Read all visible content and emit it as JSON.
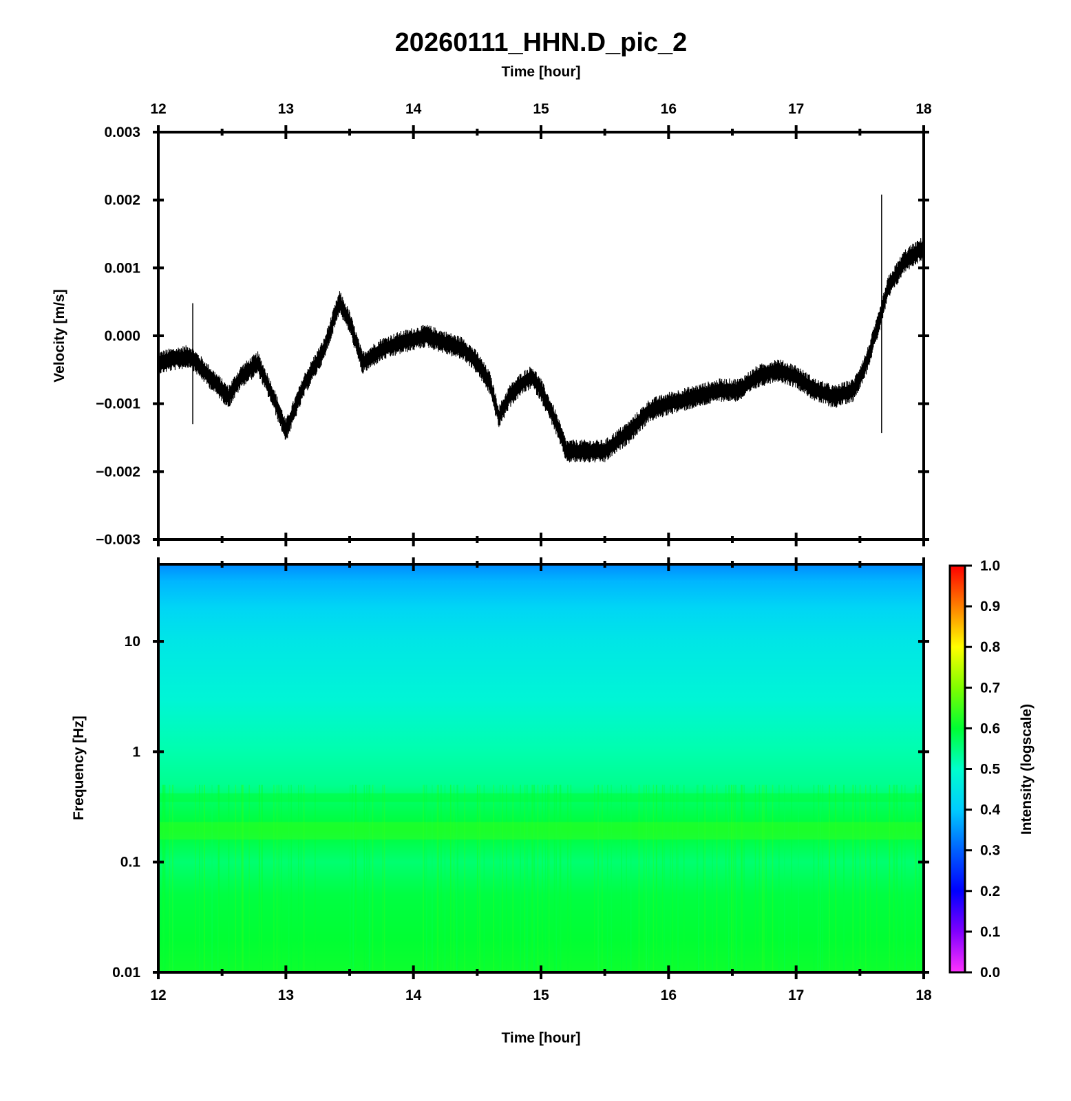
{
  "title": "20260111_HHN.D_pic_2",
  "chart_data": [
    {
      "type": "line",
      "name": "velocity-trace",
      "top_xlabel": "Time [hour]",
      "ylabel": "Velocity [m/s]",
      "xlim": [
        12,
        18
      ],
      "ylim": [
        -0.003,
        0.003
      ],
      "x_ticks": [
        "12",
        "13",
        "14",
        "15",
        "16",
        "17",
        "18"
      ],
      "y_ticks": [
        {
          "value": 0.003,
          "label": "0.003"
        },
        {
          "value": 0.002,
          "label": "0.002"
        },
        {
          "value": 0.001,
          "label": "0.001"
        },
        {
          "value": 0.0,
          "label": "0.000"
        },
        {
          "value": -0.001,
          "label": "−0.001"
        },
        {
          "value": -0.002,
          "label": "−0.002"
        },
        {
          "value": -0.003,
          "label": "−0.003"
        }
      ],
      "x": [
        12.0,
        12.1,
        12.25,
        12.4,
        12.55,
        12.65,
        12.78,
        12.9,
        13.0,
        13.15,
        13.3,
        13.42,
        13.5,
        13.6,
        13.75,
        13.9,
        14.1,
        14.25,
        14.4,
        14.5,
        14.6,
        14.67,
        14.75,
        14.85,
        14.93,
        15.0,
        15.1,
        15.2,
        15.35,
        15.5,
        15.7,
        15.85,
        16.0,
        16.2,
        16.4,
        16.55,
        16.7,
        16.85,
        17.0,
        17.15,
        17.3,
        17.45,
        17.55,
        17.65,
        17.72,
        17.85,
        18.0
      ],
      "y": [
        -0.0004,
        -0.00035,
        -0.0003,
        -0.0006,
        -0.0009,
        -0.0006,
        -0.0004,
        -0.0009,
        -0.0014,
        -0.0007,
        -0.0002,
        0.0005,
        0.0002,
        -0.0004,
        -0.0002,
        -0.0001,
        0.0,
        -0.0001,
        -0.0002,
        -0.0004,
        -0.0007,
        -0.0012,
        -0.0009,
        -0.0007,
        -0.0006,
        -0.0008,
        -0.0012,
        -0.0017,
        -0.0017,
        -0.0017,
        -0.0014,
        -0.0011,
        -0.001,
        -0.0009,
        -0.0008,
        -0.0008,
        -0.0006,
        -0.0005,
        -0.0006,
        -0.0008,
        -0.0009,
        -0.0008,
        -0.0004,
        0.0002,
        0.0007,
        0.0011,
        0.0013
      ],
      "noise_amplitude": 0.00015,
      "spikes": [
        {
          "x": 12.27,
          "ymin": -0.0013,
          "ymax": 0.00048
        },
        {
          "x": 17.67,
          "ymin": -0.00143,
          "ymax": 0.00208
        }
      ]
    },
    {
      "type": "heatmap",
      "name": "spectrogram",
      "xlabel": "Time [hour]",
      "ylabel": "Frequency [Hz]",
      "xlim": [
        12,
        18
      ],
      "ylim": [
        0.01,
        50
      ],
      "yscale": "log",
      "x_ticks": [
        "12",
        "13",
        "14",
        "15",
        "16",
        "17",
        "18"
      ],
      "y_ticks": [
        {
          "value": 10,
          "label": "10"
        },
        {
          "value": 1,
          "label": "1"
        },
        {
          "value": 0.1,
          "label": "0.1"
        },
        {
          "value": 0.01,
          "label": "0.01"
        }
      ],
      "intensity_profile": {
        "freq": [
          50,
          35,
          20,
          10,
          3,
          1,
          0.5,
          0.35,
          0.2,
          0.1,
          0.05,
          0.02,
          0.01
        ],
        "value": [
          0.34,
          0.38,
          0.42,
          0.45,
          0.48,
          0.52,
          0.54,
          0.57,
          0.6,
          0.56,
          0.59,
          0.6,
          0.61
        ]
      },
      "colorbar": {
        "label": "Intensity (logscale)",
        "range": [
          0.0,
          1.0
        ],
        "ticks": [
          "0.0",
          "0.1",
          "0.2",
          "0.3",
          "0.4",
          "0.5",
          "0.6",
          "0.7",
          "0.8",
          "0.9",
          "1.0"
        ],
        "colors": [
          "#ff33ff",
          "#8000ff",
          "#0000ff",
          "#0060ff",
          "#00ccff",
          "#00ffcc",
          "#00ff33",
          "#80ff00",
          "#ffff00",
          "#ff8000",
          "#ff0000"
        ]
      }
    }
  ]
}
